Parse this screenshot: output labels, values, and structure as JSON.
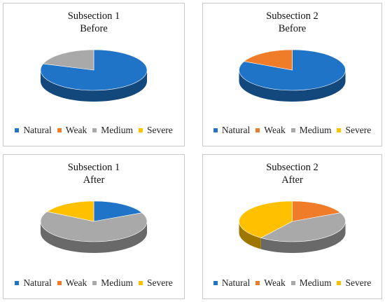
{
  "colors": {
    "Natural": "#1f74c8",
    "Weak": "#f07c2a",
    "Medium": "#a9a9a9",
    "Severe": "#ffc000"
  },
  "legend": [
    "Natural",
    "Weak",
    "Medium",
    "Severe"
  ],
  "chart_data": [
    {
      "type": "pie",
      "title": "Subsection 1",
      "subtitle": "Before",
      "categories": [
        "Natural",
        "Weak",
        "Medium",
        "Severe"
      ],
      "values": [
        80,
        0,
        20,
        0
      ]
    },
    {
      "type": "pie",
      "title": "Subsection 2",
      "subtitle": "Before",
      "categories": [
        "Natural",
        "Weak",
        "Medium",
        "Severe"
      ],
      "values": [
        82,
        18,
        0,
        0
      ]
    },
    {
      "type": "pie",
      "title": "Subsection 1",
      "subtitle": "After",
      "categories": [
        "Natural",
        "Weak",
        "Medium",
        "Severe"
      ],
      "values": [
        18,
        0,
        65,
        17
      ]
    },
    {
      "type": "pie",
      "title": "Subsection 2",
      "subtitle": "After",
      "categories": [
        "Natural",
        "Weak",
        "Medium",
        "Severe"
      ],
      "values": [
        0,
        18,
        42,
        40
      ]
    }
  ]
}
